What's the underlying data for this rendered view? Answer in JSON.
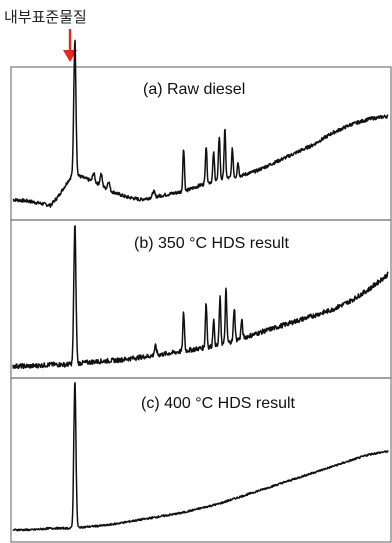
{
  "chart_data": {
    "type": "line",
    "annotation": {
      "text": "내부표준물질",
      "arrow_color": "#e8261c"
    },
    "x_range": [
      0,
      1
    ],
    "panels": [
      {
        "label": "(a) Raw diesel",
        "baseline": [
          [
            0.0,
            0.1
          ],
          [
            0.04,
            0.09
          ],
          [
            0.08,
            0.07
          ],
          [
            0.1,
            0.06
          ],
          [
            0.12,
            0.12
          ],
          [
            0.14,
            0.2
          ],
          [
            0.16,
            0.28
          ],
          [
            0.18,
            0.26
          ],
          [
            0.22,
            0.22
          ],
          [
            0.26,
            0.16
          ],
          [
            0.3,
            0.12
          ],
          [
            0.34,
            0.1
          ],
          [
            0.38,
            0.12
          ],
          [
            0.42,
            0.14
          ],
          [
            0.46,
            0.16
          ],
          [
            0.5,
            0.2
          ],
          [
            0.55,
            0.24
          ],
          [
            0.6,
            0.26
          ],
          [
            0.65,
            0.3
          ],
          [
            0.7,
            0.36
          ],
          [
            0.75,
            0.42
          ],
          [
            0.8,
            0.48
          ],
          [
            0.85,
            0.56
          ],
          [
            0.9,
            0.62
          ],
          [
            0.95,
            0.66
          ],
          [
            1.0,
            0.68
          ]
        ],
        "peaks": [
          {
            "x": 0.165,
            "h": 0.94,
            "w": 0.004
          },
          {
            "x": 0.215,
            "h": 0.06,
            "w": 0.004
          },
          {
            "x": 0.235,
            "h": 0.08,
            "w": 0.004
          },
          {
            "x": 0.255,
            "h": 0.06,
            "w": 0.004
          },
          {
            "x": 0.375,
            "h": 0.04,
            "w": 0.004
          },
          {
            "x": 0.455,
            "h": 0.3,
            "w": 0.003
          },
          {
            "x": 0.515,
            "h": 0.26,
            "w": 0.003
          },
          {
            "x": 0.535,
            "h": 0.2,
            "w": 0.003
          },
          {
            "x": 0.55,
            "h": 0.3,
            "w": 0.003
          },
          {
            "x": 0.565,
            "h": 0.34,
            "w": 0.003
          },
          {
            "x": 0.585,
            "h": 0.2,
            "w": 0.003
          },
          {
            "x": 0.6,
            "h": 0.1,
            "w": 0.003
          }
        ],
        "noise": 0.012
      },
      {
        "label": "(b) 350 °C HDS result",
        "baseline": [
          [
            0.0,
            0.04
          ],
          [
            0.05,
            0.04
          ],
          [
            0.1,
            0.05
          ],
          [
            0.14,
            0.05
          ],
          [
            0.18,
            0.06
          ],
          [
            0.22,
            0.07
          ],
          [
            0.28,
            0.08
          ],
          [
            0.34,
            0.1
          ],
          [
            0.4,
            0.12
          ],
          [
            0.45,
            0.14
          ],
          [
            0.5,
            0.16
          ],
          [
            0.55,
            0.18
          ],
          [
            0.6,
            0.22
          ],
          [
            0.65,
            0.26
          ],
          [
            0.7,
            0.3
          ],
          [
            0.75,
            0.34
          ],
          [
            0.8,
            0.38
          ],
          [
            0.85,
            0.42
          ],
          [
            0.9,
            0.48
          ],
          [
            0.95,
            0.56
          ],
          [
            1.0,
            0.66
          ]
        ],
        "peaks": [
          {
            "x": 0.165,
            "h": 0.94,
            "w": 0.004
          },
          {
            "x": 0.38,
            "h": 0.06,
            "w": 0.004
          },
          {
            "x": 0.455,
            "h": 0.26,
            "w": 0.003
          },
          {
            "x": 0.515,
            "h": 0.3,
            "w": 0.003
          },
          {
            "x": 0.535,
            "h": 0.18,
            "w": 0.003
          },
          {
            "x": 0.552,
            "h": 0.32,
            "w": 0.003
          },
          {
            "x": 0.568,
            "h": 0.36,
            "w": 0.003
          },
          {
            "x": 0.59,
            "h": 0.22,
            "w": 0.003
          },
          {
            "x": 0.61,
            "h": 0.12,
            "w": 0.003
          }
        ],
        "noise": 0.016
      },
      {
        "label": "(c) 400 °C HDS result",
        "baseline": [
          [
            0.0,
            0.04
          ],
          [
            0.05,
            0.04
          ],
          [
            0.1,
            0.05
          ],
          [
            0.15,
            0.05
          ],
          [
            0.2,
            0.06
          ],
          [
            0.25,
            0.07
          ],
          [
            0.3,
            0.09
          ],
          [
            0.35,
            0.11
          ],
          [
            0.4,
            0.13
          ],
          [
            0.45,
            0.15
          ],
          [
            0.5,
            0.18
          ],
          [
            0.55,
            0.21
          ],
          [
            0.6,
            0.25
          ],
          [
            0.65,
            0.29
          ],
          [
            0.7,
            0.33
          ],
          [
            0.75,
            0.37
          ],
          [
            0.8,
            0.41
          ],
          [
            0.85,
            0.45
          ],
          [
            0.9,
            0.49
          ],
          [
            0.95,
            0.53
          ],
          [
            1.0,
            0.55
          ]
        ],
        "peaks": [
          {
            "x": 0.165,
            "h": 0.96,
            "w": 0.004
          }
        ],
        "noise": 0.006
      }
    ]
  }
}
